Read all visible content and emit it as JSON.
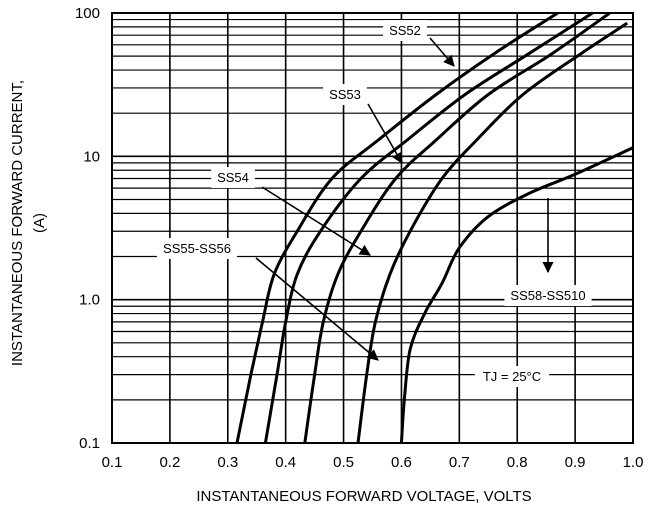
{
  "chart_data": {
    "type": "line",
    "xlabel": "INSTANTANEOUS FORWARD VOLTAGE, VOLTS",
    "ylabel_line1": "INSTANTANEOUS FORWARD CURRENT,",
    "ylabel_line2": "(A)",
    "xlim": [
      0.1,
      1.0
    ],
    "ylim": [
      0.1,
      100
    ],
    "y_scale": "log",
    "grid": true,
    "x_ticks": [
      "0.1",
      "0.2",
      "0.3",
      "0.4",
      "0.5",
      "0.6",
      "0.7",
      "0.8",
      "0.9",
      "1.0"
    ],
    "y_ticks": [
      {
        "value": 0.1,
        "label": "0.1"
      },
      {
        "value": 1,
        "label": "1.0"
      },
      {
        "value": 10,
        "label": "10"
      },
      {
        "value": 100,
        "label": "100"
      }
    ],
    "series": [
      {
        "name": "SS52",
        "points": [
          [
            0.316,
            0.1
          ],
          [
            0.34,
            0.3
          ],
          [
            0.36,
            0.7
          ],
          [
            0.38,
            1.5
          ],
          [
            0.42,
            3
          ],
          [
            0.48,
            7
          ],
          [
            0.56,
            13
          ],
          [
            0.66,
            27
          ],
          [
            0.76,
            52
          ],
          [
            0.87,
            100
          ]
        ]
      },
      {
        "name": "SS53",
        "points": [
          [
            0.365,
            0.1
          ],
          [
            0.385,
            0.3
          ],
          [
            0.4,
            0.7
          ],
          [
            0.42,
            1.5
          ],
          [
            0.46,
            3
          ],
          [
            0.53,
            7
          ],
          [
            0.61,
            13
          ],
          [
            0.71,
            27
          ],
          [
            0.82,
            52
          ],
          [
            0.93,
            100
          ]
        ]
      },
      {
        "name": "SS54",
        "points": [
          [
            0.433,
            0.1
          ],
          [
            0.45,
            0.3
          ],
          [
            0.465,
            0.7
          ],
          [
            0.49,
            1.5
          ],
          [
            0.53,
            3
          ],
          [
            0.59,
            7
          ],
          [
            0.66,
            13
          ],
          [
            0.75,
            27
          ],
          [
            0.86,
            52
          ],
          [
            0.96,
            100
          ]
        ]
      },
      {
        "name": "SS55-SS56",
        "points": [
          [
            0.525,
            0.1
          ],
          [
            0.54,
            0.3
          ],
          [
            0.555,
            0.7
          ],
          [
            0.58,
            1.5
          ],
          [
            0.615,
            3
          ],
          [
            0.67,
            7
          ],
          [
            0.73,
            13
          ],
          [
            0.81,
            27
          ],
          [
            0.91,
            52
          ],
          [
            0.99,
            85
          ]
        ]
      },
      {
        "name": "SS58-SS510",
        "points": [
          [
            0.6,
            0.1
          ],
          [
            0.605,
            0.2
          ],
          [
            0.615,
            0.45
          ],
          [
            0.64,
            0.8
          ],
          [
            0.67,
            1.3
          ],
          [
            0.7,
            2.3
          ],
          [
            0.75,
            3.8
          ],
          [
            0.82,
            5.5
          ],
          [
            0.9,
            7.5
          ],
          [
            1.0,
            11.5
          ]
        ]
      }
    ],
    "annotations": [
      {
        "text": "SS52",
        "target_series": "SS52"
      },
      {
        "text": "SS53",
        "target_series": "SS53"
      },
      {
        "text": "SS54",
        "target_series": "SS54"
      },
      {
        "text": "SS55-SS56",
        "target_series": "SS55-SS56"
      },
      {
        "text": "SS58-SS510",
        "target_series": "SS58-SS510"
      }
    ],
    "condition_label": "TJ = 25°C"
  }
}
